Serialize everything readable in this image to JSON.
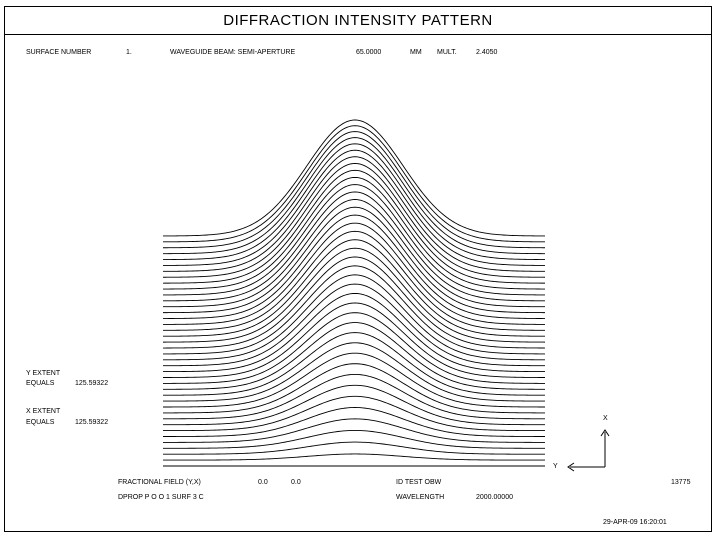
{
  "title": "DIFFRACTION INTENSITY PATTERN",
  "header": {
    "surface_label": "SURFACE NUMBER",
    "surface_value": "1.",
    "beam_label": "WAVEGUIDE BEAM: SEMI-APERTURE",
    "beam_value": "65.0000",
    "units": "MM",
    "mult_label": "MULT.",
    "mult_value": "2.4050"
  },
  "extents": {
    "y_label": "Y EXTENT",
    "y_equals": "EQUALS",
    "y_value": "125.59322",
    "x_label": "X EXTENT",
    "x_equals": "EQUALS",
    "x_value": "125.59322"
  },
  "footer": {
    "field_label": "FRACTIONAL FIELD (Y,X)",
    "field_y": "0.0",
    "field_x": "0.0",
    "id_label": "ID TEST OBW",
    "id_value": "13775",
    "dprop_label": "DPROP P O O 1 SURF 3 C",
    "wavelength_label": "WAVELENGTH",
    "wavelength_value": "2000.00000",
    "timestamp": "29-APR-09  16:20:01"
  },
  "axes": {
    "x_label": "X",
    "y_label": "Y"
  },
  "chart_data": {
    "type": "surface",
    "description": "Gaussian intensity profile shown as stacked cross-section curves",
    "num_curves": 40,
    "peak_relative": 1.0
  }
}
